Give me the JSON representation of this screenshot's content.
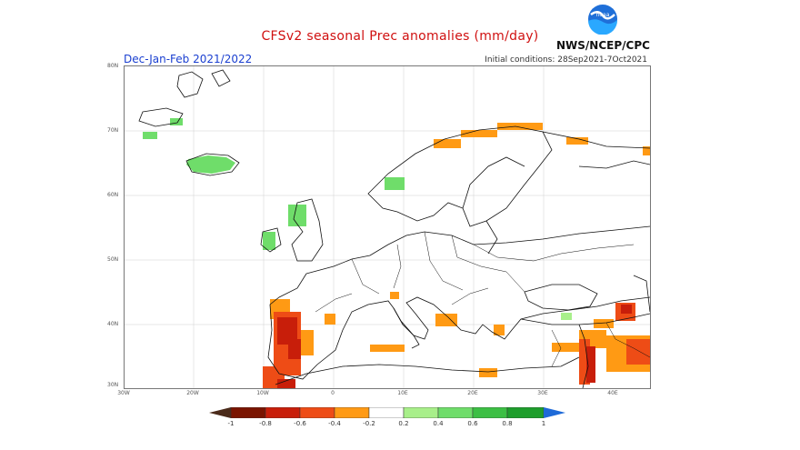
{
  "header": {
    "title": "CFSv2 seasonal Prec anomalies (mm/day)",
    "season": "Dec-Jan-Feb 2021/2022",
    "initial_conditions": "Initial conditions: 28Sep2021-7Oct2021",
    "agency": "NWS/NCEP/CPC",
    "logo_text": "noaa"
  },
  "map": {
    "region": "Europe",
    "lat_labels": [
      "80N",
      "70N",
      "60N",
      "50N",
      "40N",
      "30N"
    ],
    "lon_labels": [
      "30W",
      "20W",
      "10W",
      "0",
      "10E",
      "20E",
      "30E",
      "40E"
    ]
  },
  "legend": {
    "labels": [
      "-1",
      "-0.8",
      "-0.6",
      "-0.4",
      "-0.2",
      "0.2",
      "0.4",
      "0.6",
      "0.8",
      "1"
    ],
    "colors": [
      "#7a1400",
      "#c81e0a",
      "#ee4c16",
      "#ff9a14",
      "#ffffff",
      "#a8ef8a",
      "#6fdd6a",
      "#3cbf44",
      "#1e9e2c"
    ],
    "colors_note": "dry to wet"
  }
}
